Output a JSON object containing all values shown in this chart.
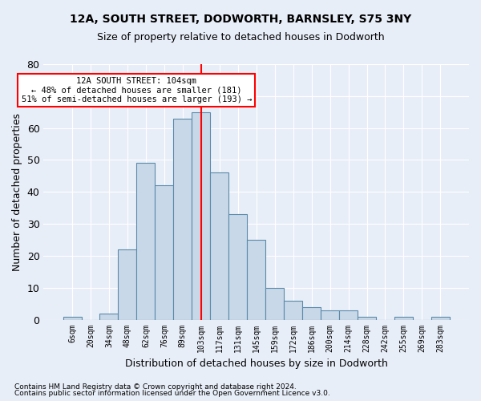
{
  "title1": "12A, SOUTH STREET, DODWORTH, BARNSLEY, S75 3NY",
  "title2": "Size of property relative to detached houses in Dodworth",
  "xlabel": "Distribution of detached houses by size in Dodworth",
  "ylabel": "Number of detached properties",
  "footnote1": "Contains HM Land Registry data © Crown copyright and database right 2024.",
  "footnote2": "Contains public sector information licensed under the Open Government Licence v3.0.",
  "bar_labels": [
    "6sqm",
    "20sqm",
    "34sqm",
    "48sqm",
    "62sqm",
    "76sqm",
    "89sqm",
    "103sqm",
    "117sqm",
    "131sqm",
    "145sqm",
    "159sqm",
    "172sqm",
    "186sqm",
    "200sqm",
    "214sqm",
    "228sqm",
    "242sqm",
    "255sqm",
    "269sqm",
    "283sqm"
  ],
  "bar_heights": [
    1,
    0,
    2,
    22,
    49,
    42,
    63,
    65,
    46,
    33,
    25,
    10,
    6,
    4,
    3,
    3,
    1,
    0,
    1,
    0,
    1
  ],
  "bar_color": "#c8d8e8",
  "bar_edge_color": "#5a8aaa",
  "highlight_bar_index": 7,
  "annotation_text1": "12A SOUTH STREET: 104sqm",
  "annotation_text2": "← 48% of detached houses are smaller (181)",
  "annotation_text3": "51% of semi-detached houses are larger (193) →",
  "ylim": [
    0,
    80
  ],
  "yticks": [
    0,
    10,
    20,
    30,
    40,
    50,
    60,
    70,
    80
  ],
  "background_color": "#e8eef8",
  "axes_background_color": "#e8eef8",
  "grid_color": "#ffffff",
  "title1_fontsize": 10,
  "title2_fontsize": 9
}
